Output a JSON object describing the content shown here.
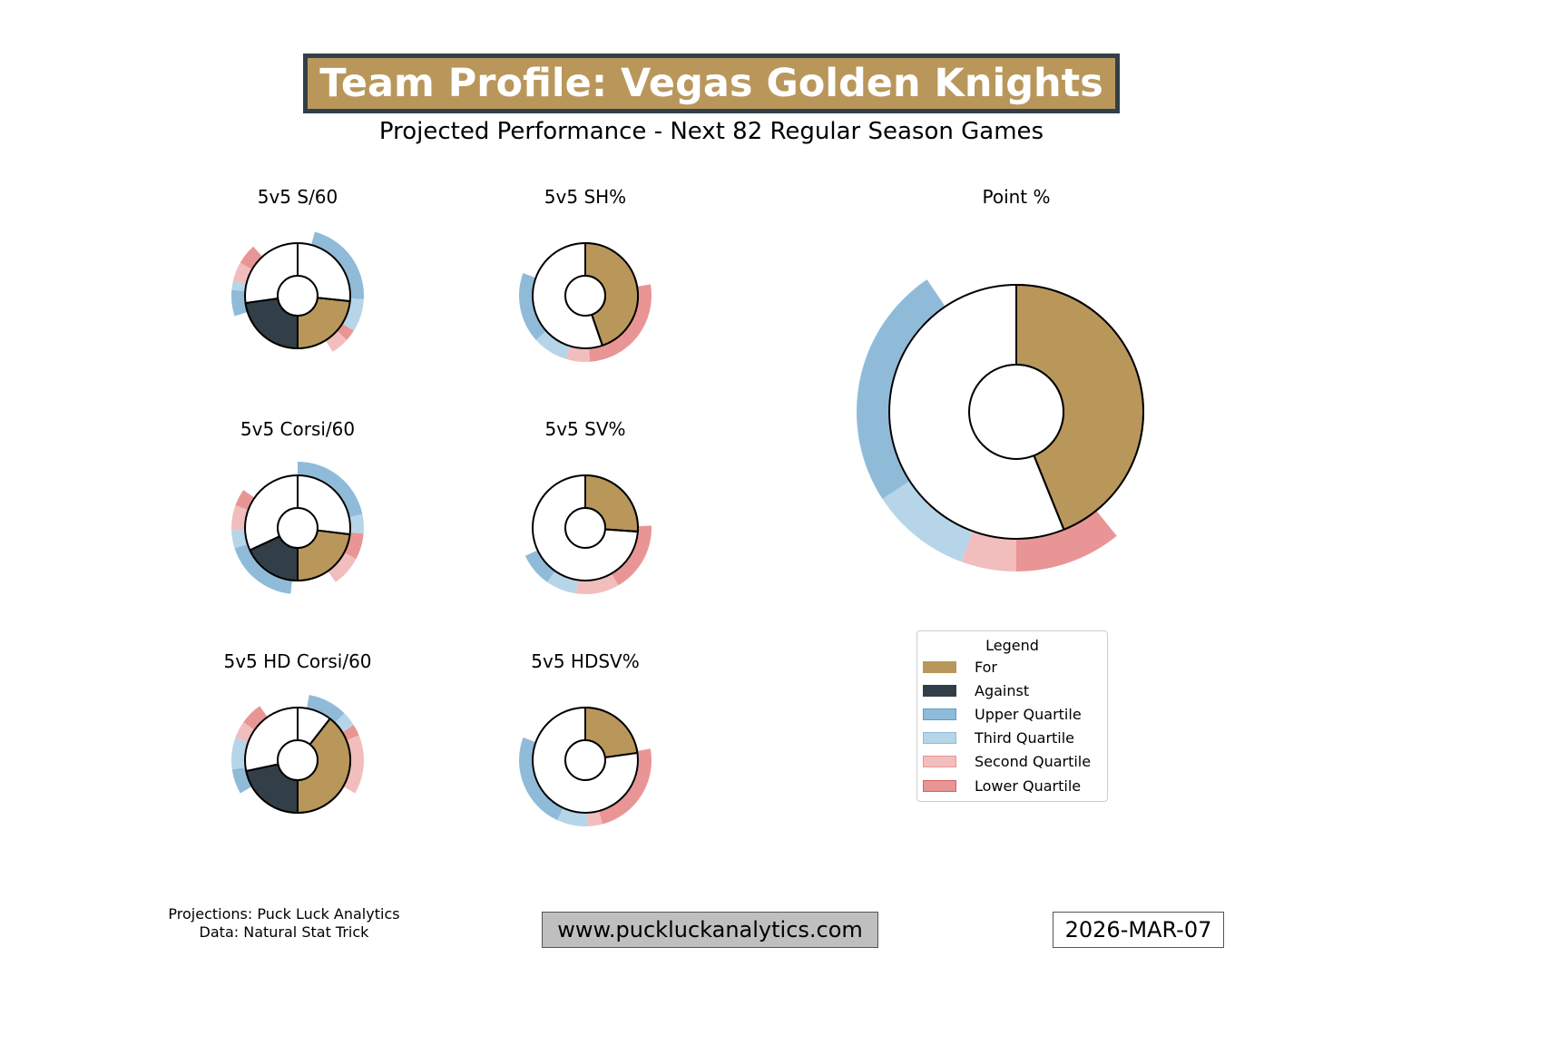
{
  "header": {
    "title": "Team Profile: Vegas Golden Knights",
    "subtitle": "Projected Performance - Next 82 Regular Season Games"
  },
  "colors": {
    "for": "#b9975b",
    "against": "#333f48",
    "upper": "#8fbbd9",
    "third": "#b7d5e8",
    "second": "#f2bdbd",
    "lower": "#e99595"
  },
  "chart_data": [
    {
      "type": "donut",
      "title": "5v5 S/60",
      "mode": "for_against",
      "wedges": [
        {
          "kind": "for",
          "start": 96,
          "end": 180
        },
        {
          "kind": "against",
          "start": 180,
          "end": 262
        }
      ],
      "ring": [
        {
          "q": "upper",
          "start": 15,
          "end": 93
        },
        {
          "q": "third",
          "start": 93,
          "end": 122
        },
        {
          "q": "lower",
          "start": 122,
          "end": 132
        },
        {
          "q": "second",
          "start": 132,
          "end": 148
        },
        {
          "q": "upper",
          "start": 252,
          "end": 275
        },
        {
          "q": "third",
          "start": 275,
          "end": 283
        },
        {
          "q": "second",
          "start": 283,
          "end": 300
        },
        {
          "q": "lower",
          "start": 300,
          "end": 318
        }
      ]
    },
    {
      "type": "donut",
      "title": "5v5 SH%",
      "mode": "single",
      "wedges": [
        {
          "kind": "for",
          "start": 0,
          "end": 161
        }
      ],
      "ring": [
        {
          "q": "lower",
          "start": 80,
          "end": 176
        },
        {
          "q": "second",
          "start": 176,
          "end": 197
        },
        {
          "q": "third",
          "start": 197,
          "end": 228
        },
        {
          "q": "upper",
          "start": 228,
          "end": 290
        }
      ]
    },
    {
      "type": "donut",
      "title": "5v5 Corsi/60",
      "mode": "for_against",
      "wedges": [
        {
          "kind": "for",
          "start": 97,
          "end": 180
        },
        {
          "kind": "against",
          "start": 180,
          "end": 245
        }
      ],
      "ring": [
        {
          "q": "upper",
          "start": 0,
          "end": 78
        },
        {
          "q": "third",
          "start": 78,
          "end": 95
        },
        {
          "q": "lower",
          "start": 95,
          "end": 118
        },
        {
          "q": "second",
          "start": 118,
          "end": 145
        },
        {
          "q": "upper",
          "start": 186,
          "end": 252
        },
        {
          "q": "third",
          "start": 252,
          "end": 268
        },
        {
          "q": "second",
          "start": 268,
          "end": 290
        },
        {
          "q": "lower",
          "start": 290,
          "end": 305
        }
      ]
    },
    {
      "type": "donut",
      "title": "5v5 SV%",
      "mode": "single",
      "wedges": [
        {
          "kind": "for",
          "start": 0,
          "end": 94
        }
      ],
      "ring": [
        {
          "q": "lower",
          "start": 88,
          "end": 150
        },
        {
          "q": "second",
          "start": 150,
          "end": 188
        },
        {
          "q": "third",
          "start": 188,
          "end": 215
        },
        {
          "q": "upper",
          "start": 215,
          "end": 245
        }
      ]
    },
    {
      "type": "donut",
      "title": "5v5 HD Corsi/60",
      "mode": "for_against",
      "wedges": [
        {
          "kind": "for",
          "start": 38,
          "end": 180
        },
        {
          "kind": "against",
          "start": 180,
          "end": 258
        }
      ],
      "ring": [
        {
          "q": "upper",
          "start": 10,
          "end": 45
        },
        {
          "q": "third",
          "start": 45,
          "end": 58
        },
        {
          "q": "lower",
          "start": 58,
          "end": 68
        },
        {
          "q": "second",
          "start": 68,
          "end": 120
        },
        {
          "q": "upper",
          "start": 240,
          "end": 262
        },
        {
          "q": "third",
          "start": 262,
          "end": 290
        },
        {
          "q": "second",
          "start": 290,
          "end": 305
        },
        {
          "q": "lower",
          "start": 305,
          "end": 325
        }
      ]
    },
    {
      "type": "donut",
      "title": "5v5 HDSV%",
      "mode": "single",
      "wedges": [
        {
          "kind": "for",
          "start": 0,
          "end": 82
        }
      ],
      "ring": [
        {
          "q": "lower",
          "start": 80,
          "end": 165
        },
        {
          "q": "second",
          "start": 165,
          "end": 178
        },
        {
          "q": "third",
          "start": 178,
          "end": 205
        },
        {
          "q": "upper",
          "start": 205,
          "end": 290
        }
      ]
    },
    {
      "type": "donut",
      "title": "Point %",
      "mode": "single",
      "wedges": [
        {
          "kind": "for",
          "start": 0,
          "end": 158
        }
      ],
      "ring": [
        {
          "q": "lower",
          "start": 141,
          "end": 180
        },
        {
          "q": "second",
          "start": 180,
          "end": 200
        },
        {
          "q": "third",
          "start": 200,
          "end": 237
        },
        {
          "q": "upper",
          "start": 237,
          "end": 326
        }
      ]
    }
  ],
  "legend": {
    "title": "Legend",
    "items": [
      {
        "label": "For",
        "key": "for"
      },
      {
        "label": "Against",
        "key": "against"
      },
      {
        "label": "Upper Quartile",
        "key": "upper"
      },
      {
        "label": "Third Quartile",
        "key": "third"
      },
      {
        "label": "Second Quartile",
        "key": "second"
      },
      {
        "label": "Lower Quartile",
        "key": "lower"
      }
    ]
  },
  "footer": {
    "credits_line1": "Projections: Puck Luck Analytics",
    "credits_line2": "Data: Natural Stat Trick",
    "website": "www.puckluckanalytics.com",
    "date": "2026-MAR-07"
  }
}
